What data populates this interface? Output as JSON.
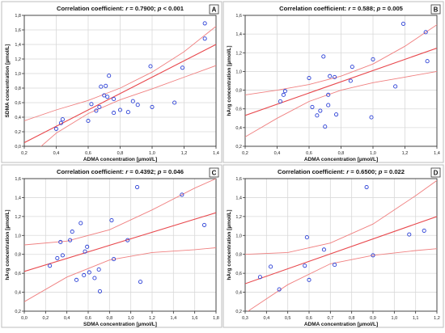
{
  "chart_data": [
    {
      "panel": "A",
      "type": "scatter",
      "title": "Correlation coefficient: r = 0.7900; p < 0.001",
      "title_parts": {
        "prefix": "Correlation coefficient: ",
        "r_symbol": "r",
        "r_text": " = 0.7900; ",
        "p_symbol": "p",
        "p_text": " < 0.001"
      },
      "xlabel": "ADMA concentration [µmol/L]",
      "ylabel": "SDMA concentration [µmol/L]",
      "xlim": [
        0.2,
        1.4
      ],
      "ylim": [
        0.0,
        1.8
      ],
      "xticks": [
        "0,2",
        "0,4",
        "0,6",
        "0,8",
        "1,0",
        "1,2",
        "1,4"
      ],
      "yticks": [
        "0,0",
        "0,2",
        "0,4",
        "0,6",
        "0,8",
        "1,0",
        "1,2",
        "1,4",
        "1,6",
        "1,8"
      ],
      "fit": {
        "x1": 0.2,
        "y1": 0.05,
        "x2": 1.4,
        "y2": 1.4
      },
      "ci_upper": [
        [
          0.2,
          0.35
        ],
        [
          0.4,
          0.5
        ],
        [
          0.6,
          0.63
        ],
        [
          0.8,
          0.8
        ],
        [
          1.0,
          1.02
        ],
        [
          1.2,
          1.3
        ],
        [
          1.4,
          1.65
        ]
      ],
      "ci_lower": [
        [
          0.2,
          -0.2
        ],
        [
          0.4,
          0.18
        ],
        [
          0.6,
          0.45
        ],
        [
          0.8,
          0.64
        ],
        [
          1.0,
          0.79
        ],
        [
          1.2,
          0.95
        ],
        [
          1.4,
          1.11
        ]
      ],
      "points": [
        [
          0.4,
          0.24
        ],
        [
          0.43,
          0.32
        ],
        [
          0.44,
          0.37
        ],
        [
          0.6,
          0.35
        ],
        [
          0.62,
          0.58
        ],
        [
          0.65,
          0.49
        ],
        [
          0.67,
          0.54
        ],
        [
          0.68,
          0.82
        ],
        [
          0.7,
          0.7
        ],
        [
          0.71,
          0.83
        ],
        [
          0.72,
          0.68
        ],
        [
          0.73,
          0.97
        ],
        [
          0.76,
          0.65
        ],
        [
          0.76,
          0.46
        ],
        [
          0.8,
          0.5
        ],
        [
          0.85,
          0.47
        ],
        [
          0.88,
          0.62
        ],
        [
          0.91,
          0.57
        ],
        [
          0.99,
          1.1
        ],
        [
          1.0,
          0.54
        ],
        [
          1.14,
          0.6
        ],
        [
          1.19,
          1.08
        ],
        [
          1.33,
          1.48
        ],
        [
          1.33,
          1.69
        ]
      ]
    },
    {
      "panel": "B",
      "type": "scatter",
      "title": "Correlation coefficient: r = 0.588; p = 0.005",
      "title_parts": {
        "prefix": "Correlation coefficient: ",
        "r_symbol": "r",
        "r_text": " = 0.588; ",
        "p_symbol": "p",
        "p_text": " = 0.005"
      },
      "xlabel": "ADMA concentration [µmol/L]",
      "ylabel": "hArg concentration [µmol/L]",
      "xlim": [
        0.2,
        1.4
      ],
      "ylim": [
        0.2,
        1.6
      ],
      "xticks": [
        "0,2",
        "0,4",
        "0,6",
        "0,8",
        "1,0",
        "1,2",
        "1,4"
      ],
      "yticks": [
        "0,2",
        "0,4",
        "0,6",
        "0,8",
        "1,0",
        "1,2",
        "1,4",
        "1,6"
      ],
      "fit": {
        "x1": 0.2,
        "y1": 0.53,
        "x2": 1.4,
        "y2": 1.25
      },
      "ci_upper": [
        [
          0.2,
          0.75
        ],
        [
          0.4,
          0.8
        ],
        [
          0.6,
          0.86
        ],
        [
          0.8,
          0.95
        ],
        [
          1.0,
          1.08
        ],
        [
          1.2,
          1.27
        ],
        [
          1.4,
          1.5
        ]
      ],
      "ci_lower": [
        [
          0.2,
          0.3
        ],
        [
          0.4,
          0.5
        ],
        [
          0.6,
          0.68
        ],
        [
          0.8,
          0.8
        ],
        [
          1.0,
          0.88
        ],
        [
          1.2,
          0.94
        ],
        [
          1.4,
          1.0
        ]
      ],
      "points": [
        [
          0.42,
          0.68
        ],
        [
          0.44,
          0.75
        ],
        [
          0.45,
          0.79
        ],
        [
          0.6,
          0.93
        ],
        [
          0.62,
          0.62
        ],
        [
          0.65,
          0.53
        ],
        [
          0.67,
          0.58
        ],
        [
          0.69,
          1.16
        ],
        [
          0.7,
          0.41
        ],
        [
          0.72,
          0.64
        ],
        [
          0.72,
          0.75
        ],
        [
          0.73,
          0.95
        ],
        [
          0.76,
          0.94
        ],
        [
          0.77,
          0.54
        ],
        [
          0.86,
          0.9
        ],
        [
          0.87,
          1.05
        ],
        [
          0.99,
          0.51
        ],
        [
          1.0,
          1.13
        ],
        [
          1.14,
          0.84
        ],
        [
          1.19,
          1.51
        ],
        [
          1.33,
          1.42
        ],
        [
          1.34,
          1.11
        ]
      ]
    },
    {
      "panel": "C",
      "type": "scatter",
      "title": "Correlation coefficient: r = 0.4392; p = 0.046",
      "title_parts": {
        "prefix": "Correlation coefficient: ",
        "r_symbol": "r",
        "r_text": " = 0.4392; ",
        "p_symbol": "p",
        "p_text": " = 0.046"
      },
      "xlabel": "SDMA concentration [µmol/L]",
      "ylabel": "hArg concentration [µmol/L]",
      "xlim": [
        0.0,
        1.8
      ],
      "ylim": [
        0.2,
        1.6
      ],
      "xticks": [
        "0,0",
        "0,2",
        "0,4",
        "0,6",
        "0,8",
        "1,0",
        "1,2",
        "1,4",
        "1,6",
        "1,8"
      ],
      "yticks": [
        "0,2",
        "0,4",
        "0,6",
        "0,8",
        "1,0",
        "1,2",
        "1,4",
        "1,6"
      ],
      "fit": {
        "x1": 0.0,
        "y1": 0.62,
        "x2": 1.8,
        "y2": 1.24
      },
      "ci_upper": [
        [
          0.0,
          0.9
        ],
        [
          0.4,
          0.94
        ],
        [
          0.8,
          1.06
        ],
        [
          1.2,
          1.27
        ],
        [
          1.6,
          1.5
        ],
        [
          1.8,
          1.6
        ]
      ],
      "ci_lower": [
        [
          0.0,
          0.3
        ],
        [
          0.4,
          0.56
        ],
        [
          0.8,
          0.74
        ],
        [
          1.2,
          0.82
        ],
        [
          1.6,
          0.85
        ],
        [
          1.8,
          0.87
        ]
      ],
      "points": [
        [
          0.24,
          0.68
        ],
        [
          0.31,
          0.76
        ],
        [
          0.34,
          0.93
        ],
        [
          0.36,
          0.79
        ],
        [
          0.43,
          0.95
        ],
        [
          0.45,
          1.04
        ],
        [
          0.49,
          0.53
        ],
        [
          0.53,
          1.13
        ],
        [
          0.56,
          0.58
        ],
        [
          0.57,
          0.83
        ],
        [
          0.59,
          0.88
        ],
        [
          0.61,
          0.61
        ],
        [
          0.66,
          0.55
        ],
        [
          0.7,
          0.64
        ],
        [
          0.71,
          0.41
        ],
        [
          0.82,
          1.16
        ],
        [
          0.84,
          0.75
        ],
        [
          0.97,
          0.95
        ],
        [
          1.06,
          1.51
        ],
        [
          1.09,
          0.51
        ],
        [
          1.48,
          1.43
        ],
        [
          1.69,
          1.11
        ]
      ]
    },
    {
      "panel": "D",
      "type": "scatter",
      "title": "Correlation coefficient: r = 0.6500; p = 0.022",
      "title_parts": {
        "prefix": "Correlation coefficient: ",
        "r_symbol": "r",
        "r_text": " = 0.6500; ",
        "p_symbol": "p",
        "p_text": " = 0.022"
      },
      "xlabel": "ADMA concentration [µmol/L]",
      "ylabel": "hArg concentration [µmol/L]",
      "xlim": [
        0.3,
        1.2
      ],
      "ylim": [
        0.2,
        1.6
      ],
      "xticks": [
        "0,3",
        "0,4",
        "0,5",
        "0,6",
        "0,7",
        "0,8",
        "0,9",
        "1,0",
        "1,1",
        "1,2"
      ],
      "yticks": [
        "0,2",
        "0,4",
        "0,6",
        "0,8",
        "1,0",
        "1,2",
        "1,4",
        "1,6"
      ],
      "fit": {
        "x1": 0.3,
        "y1": 0.49,
        "x2": 1.2,
        "y2": 1.2
      },
      "ci_upper": [
        [
          0.3,
          0.8
        ],
        [
          0.5,
          0.82
        ],
        [
          0.7,
          0.92
        ],
        [
          0.9,
          1.12
        ],
        [
          1.1,
          1.42
        ],
        [
          1.2,
          1.58
        ]
      ],
      "ci_lower": [
        [
          0.3,
          0.18
        ],
        [
          0.5,
          0.48
        ],
        [
          0.7,
          0.7
        ],
        [
          0.9,
          0.79
        ],
        [
          1.1,
          0.84
        ],
        [
          1.2,
          0.86
        ]
      ],
      "points": [
        [
          0.37,
          0.56
        ],
        [
          0.42,
          0.67
        ],
        [
          0.46,
          0.43
        ],
        [
          0.58,
          0.68
        ],
        [
          0.59,
          0.98
        ],
        [
          0.6,
          0.53
        ],
        [
          0.67,
          0.85
        ],
        [
          0.72,
          0.69
        ],
        [
          0.87,
          1.51
        ],
        [
          0.9,
          0.79
        ],
        [
          1.07,
          1.01
        ],
        [
          1.14,
          1.05
        ]
      ]
    }
  ]
}
